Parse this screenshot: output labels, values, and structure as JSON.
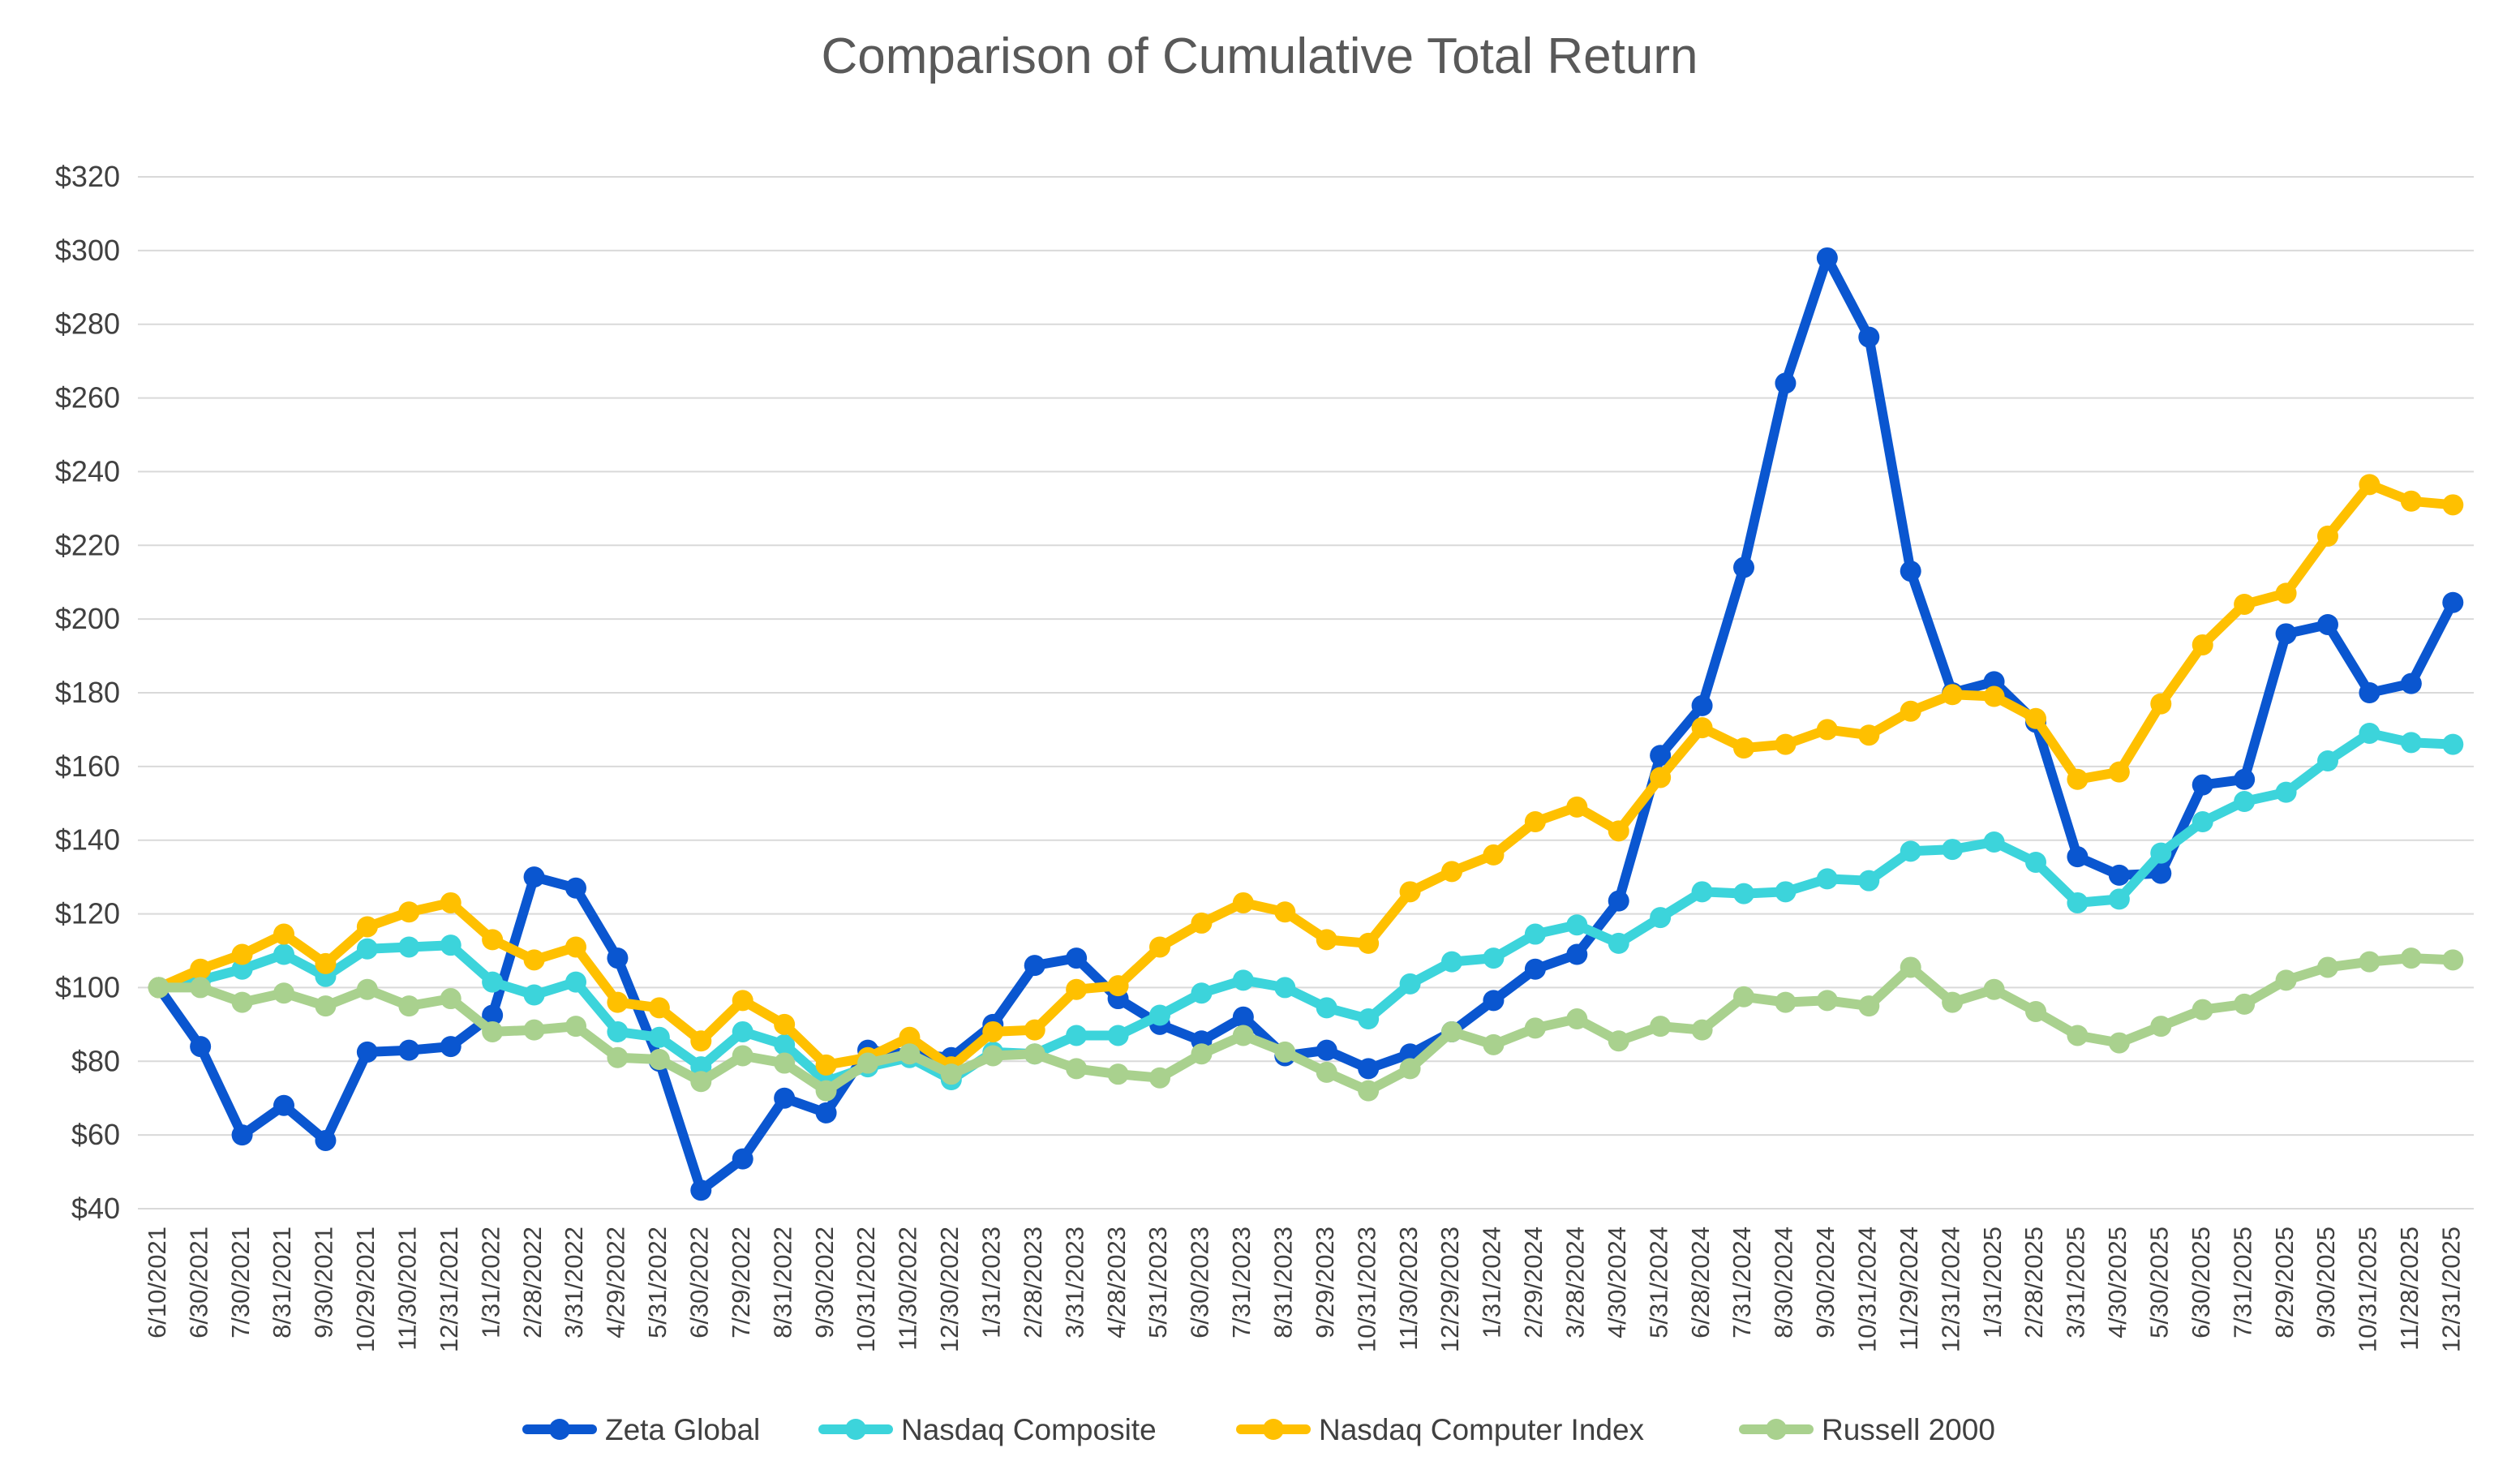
{
  "chart_data": {
    "type": "line",
    "title": "Comparison of Cumulative Total Return",
    "xlabel": "",
    "ylabel": "",
    "ylim": [
      40,
      320
    ],
    "yticks": [
      40,
      60,
      80,
      100,
      120,
      140,
      160,
      180,
      200,
      220,
      240,
      260,
      280,
      300,
      320
    ],
    "ytick_labels": [
      "$40",
      "$60",
      "$80",
      "$100",
      "$120",
      "$140",
      "$160",
      "$180",
      "$200",
      "$220",
      "$240",
      "$260",
      "$280",
      "$300",
      "$320"
    ],
    "grid": true,
    "legend_position": "bottom",
    "categories": [
      "6/10/2021",
      "6/30/2021",
      "7/30/2021",
      "8/31/2021",
      "9/30/2021",
      "10/29/2021",
      "11/30/2021",
      "12/31/2021",
      "1/31/2022",
      "2/28/2022",
      "3/31/2022",
      "4/29/2022",
      "5/31/2022",
      "6/30/2022",
      "7/29/2022",
      "8/31/2022",
      "9/30/2022",
      "10/31/2022",
      "11/30/2022",
      "12/30/2022",
      "1/31/2023",
      "2/28/2023",
      "3/31/2023",
      "4/28/2023",
      "5/31/2023",
      "6/30/2023",
      "7/31/2023",
      "8/31/2023",
      "9/29/2023",
      "10/31/2023",
      "11/30/2023",
      "12/29/2023",
      "1/31/2024",
      "2/29/2024",
      "3/28/2024",
      "4/30/2024",
      "5/31/2024",
      "6/28/2024",
      "7/31/2024",
      "8/30/2024",
      "9/30/2024",
      "10/31/2024",
      "11/29/2024",
      "12/31/2024",
      "1/31/2025",
      "2/28/2025",
      "3/31/2025",
      "4/30/2025",
      "5/30/2025",
      "6/30/2025",
      "7/31/2025",
      "8/29/2025",
      "9/30/2025",
      "10/31/2025",
      "11/28/2025",
      "12/31/2025"
    ],
    "series": [
      {
        "name": "Zeta Global",
        "color": "#0A56D0",
        "values": [
          100,
          84,
          60,
          68,
          58.5,
          82.5,
          83,
          84,
          92.5,
          130,
          127,
          108,
          80,
          45,
          53.5,
          70,
          66,
          83,
          82,
          81,
          90,
          106,
          108,
          97,
          90,
          85.5,
          92,
          81.5,
          83,
          78,
          82,
          88,
          96.5,
          105,
          109,
          123.5,
          163,
          176.5,
          214,
          264,
          298,
          276.5,
          213,
          180,
          183,
          172,
          135.5,
          130.5,
          131,
          155,
          156.5,
          196,
          198.5,
          180,
          182.5,
          204.5
        ]
      },
      {
        "name": "Nasdaq Composite",
        "color": "#3CD4DB",
        "values": [
          100,
          102,
          105,
          109,
          103,
          110.5,
          111,
          111.5,
          101.5,
          98,
          101.5,
          88,
          86.5,
          78.5,
          88,
          84.5,
          74.5,
          78.5,
          81,
          75,
          82.5,
          82,
          87,
          87,
          92.5,
          98.5,
          102,
          100,
          94.5,
          91.5,
          101,
          107,
          108,
          114.5,
          117,
          112,
          119,
          126,
          125.5,
          126,
          129.5,
          129,
          137,
          137.5,
          139.5,
          134,
          123,
          124,
          136.5,
          145,
          150.5,
          153,
          161.5,
          169,
          166.5,
          166
        ]
      },
      {
        "name": "Nasdaq Computer Index",
        "color": "#FFC000",
        "values": [
          100,
          105,
          109,
          114.5,
          106.5,
          116.5,
          120.5,
          123,
          113,
          107.5,
          111,
          96,
          94.5,
          85.5,
          96.5,
          90,
          79,
          81,
          86.5,
          78.5,
          88,
          88.5,
          99.5,
          100.5,
          111,
          117.5,
          123,
          120.5,
          113,
          112,
          126,
          131.5,
          136,
          145,
          149,
          142.5,
          157,
          170.5,
          165,
          166,
          170,
          168.5,
          175,
          179.5,
          179,
          173,
          156.5,
          158.5,
          177,
          193,
          204,
          207,
          222.5,
          236.5,
          232,
          231
        ]
      },
      {
        "name": "Russell 2000",
        "color": "#A9D18E",
        "values": [
          100,
          100,
          96,
          98.5,
          95,
          99.5,
          95,
          97,
          88,
          88.5,
          89.5,
          81,
          80.5,
          74.5,
          81.5,
          79.5,
          72,
          79.5,
          82,
          76.5,
          81.5,
          82,
          78,
          76.5,
          75.5,
          82,
          87,
          82.5,
          77,
          72,
          78,
          88,
          84.5,
          89,
          91.5,
          85.5,
          89.5,
          88.5,
          97.5,
          96,
          96.5,
          95,
          105.5,
          96,
          99.5,
          93.5,
          87,
          85,
          89.5,
          94,
          95.5,
          102,
          105.5,
          107,
          108,
          107.5
        ]
      }
    ]
  }
}
